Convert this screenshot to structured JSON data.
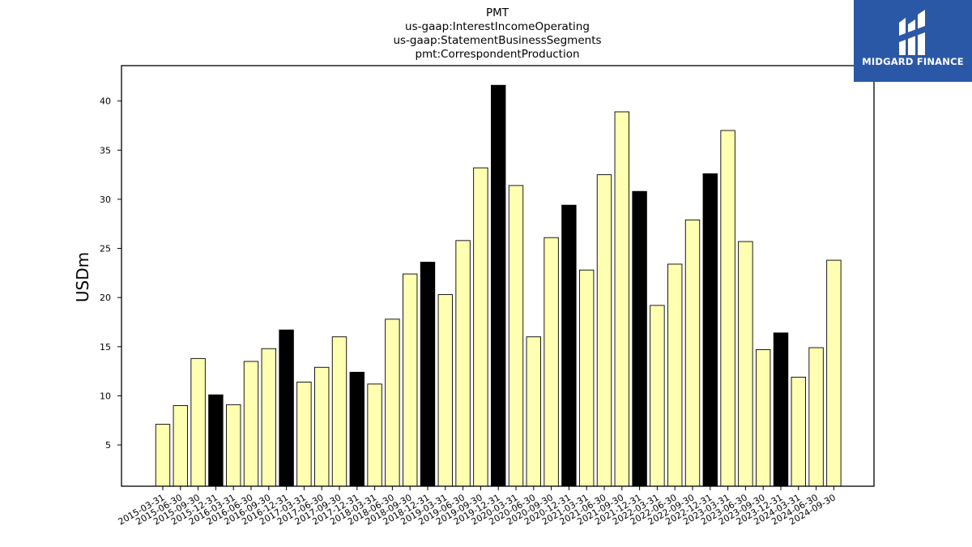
{
  "chart_data": {
    "type": "bar",
    "title_lines": [
      "PMT",
      "us-gaap:InterestIncomeOperating",
      "us-gaap:StatementBusinessSegments",
      "pmt:CorrespondentProduction"
    ],
    "xlabel": "",
    "ylabel": "USDm",
    "ylim": [
      0.8,
      43.6
    ],
    "yticks": [
      5,
      10,
      15,
      20,
      25,
      30,
      35,
      40
    ],
    "grid": false,
    "legend": "none",
    "colors": {
      "default": "#ffffb2",
      "year_end": "#000000",
      "edge": "#000000"
    },
    "categories": [
      "2015-03-31",
      "2015-06-30",
      "2015-09-30",
      "2015-12-31",
      "2016-03-31",
      "2016-06-30",
      "2016-09-30",
      "2016-12-31",
      "2017-03-31",
      "2017-06-30",
      "2017-09-30",
      "2017-12-31",
      "2018-03-31",
      "2018-06-30",
      "2018-09-30",
      "2018-12-31",
      "2019-03-31",
      "2019-06-30",
      "2019-09-30",
      "2019-12-31",
      "2020-03-31",
      "2020-06-30",
      "2020-09-30",
      "2020-12-31",
      "2021-03-31",
      "2021-06-30",
      "2021-09-30",
      "2021-12-31",
      "2022-03-31",
      "2022-06-30",
      "2022-09-30",
      "2022-12-31",
      "2023-03-31",
      "2023-06-30",
      "2023-09-30",
      "2023-12-31",
      "2024-03-31",
      "2024-06-30",
      "2024-09-30"
    ],
    "values": [
      7.1,
      9.0,
      13.8,
      10.1,
      9.1,
      13.5,
      14.8,
      16.7,
      11.4,
      12.9,
      16.0,
      12.4,
      11.2,
      17.8,
      22.4,
      23.6,
      20.3,
      25.8,
      33.2,
      41.6,
      31.4,
      16.0,
      26.1,
      29.4,
      22.8,
      32.5,
      38.9,
      30.8,
      19.2,
      23.4,
      27.9,
      32.6,
      37.0,
      25.7,
      14.7,
      16.4,
      11.9,
      14.9,
      23.8
    ]
  },
  "logo": {
    "text": "MIDGARD FINANCE",
    "icon": "midgard-logo-icon"
  }
}
